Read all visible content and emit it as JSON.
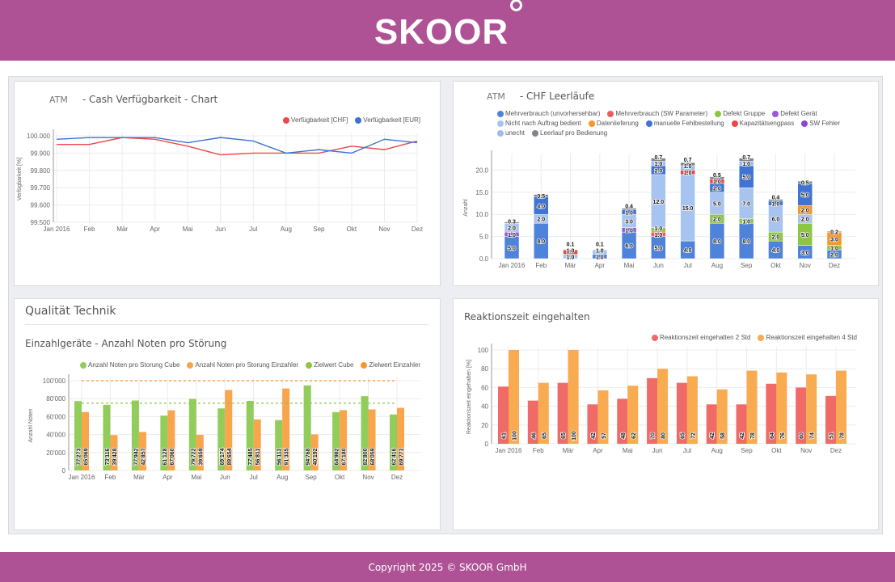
{
  "header": {
    "logo": "SKOOR"
  },
  "footer": {
    "copyright": "Copyright 2025 © SKOOR GmbH"
  },
  "colors": {
    "brand": "#ae5295"
  },
  "months": [
    "Jan 2016",
    "Feb",
    "Mär",
    "Apr",
    "Mai",
    "Jun",
    "Jul",
    "Aug",
    "Sep",
    "Okt",
    "Nov",
    "Dez"
  ],
  "panels": {
    "cash": {
      "prefix": "ATM",
      "title": "- Cash Verfügbarkeit - Chart"
    },
    "leer": {
      "prefix": "ATM",
      "title": "- CHF Leerläufe"
    },
    "qual": {
      "section": "Qualität Technik",
      "title": "Einzahlgeräte - Anzahl Noten pro Störung"
    },
    "reak": {
      "title": "Reaktionszeit eingehalten"
    }
  },
  "chart_data": [
    {
      "type": "line",
      "ylabel": "Verfügbarkeit [%]",
      "ylim": [
        99.5,
        100.0
      ],
      "yticks": [
        99.5,
        99.6,
        99.7,
        99.8,
        99.9,
        100.0
      ],
      "ytick_labels": [
        "99.500",
        "99.600",
        "99.700",
        "99.800",
        "99.900",
        "100.000"
      ],
      "legend_position": "top-right",
      "grid": true,
      "series": [
        {
          "name": "Verfügbarkeit [CHF]",
          "color": "#f0464a",
          "values": [
            99.95,
            99.95,
            99.99,
            99.98,
            99.94,
            99.89,
            99.9,
            99.9,
            99.9,
            99.94,
            99.92,
            99.97
          ]
        },
        {
          "name": "Verfügbarkeit [EUR]",
          "color": "#3a73d6",
          "values": [
            99.98,
            99.99,
            99.99,
            99.99,
            99.96,
            99.99,
            99.97,
            99.9,
            99.92,
            99.9,
            99.98,
            99.96
          ]
        }
      ]
    },
    {
      "type": "bar",
      "stacked": true,
      "ylabel": "Anzahl",
      "ylim": [
        0,
        23
      ],
      "yticks": [
        0,
        5,
        10,
        15,
        20
      ],
      "ytick_labels": [
        "0.0",
        "5.0",
        "10.0",
        "15.0",
        "20.0"
      ],
      "legend_position": "top",
      "grid": true,
      "series": [
        {
          "name": "Mehrverbrauch (unvorhersehbar)",
          "color": "#4f82d9",
          "values": [
            5,
            8,
            0,
            1,
            6,
            5,
            4,
            8,
            8,
            4,
            3,
            2
          ]
        },
        {
          "name": "Mehrverbrauch (SW Parameter)",
          "color": "#f25a5a",
          "values": [
            0,
            0,
            0,
            0,
            0,
            1,
            0,
            0,
            0,
            0,
            0,
            0
          ]
        },
        {
          "name": "Defekt Gruppe",
          "color": "#8dc641",
          "values": [
            0,
            0,
            0,
            0,
            0,
            1,
            0,
            2,
            1,
            2,
            5,
            1
          ]
        },
        {
          "name": "Defekt Gerät",
          "color": "#9a58d8",
          "values": [
            1,
            0,
            0,
            0,
            1,
            0,
            0,
            0,
            0,
            0,
            0,
            0
          ]
        },
        {
          "name": "Nicht nach Auftrag bedient",
          "color": "#a7c3ef",
          "values": [
            2,
            2,
            1,
            1,
            3,
            12,
            15,
            5,
            7,
            6,
            2,
            0
          ]
        },
        {
          "name": "Datenlieferung",
          "color": "#f7962a",
          "values": [
            0,
            0,
            0,
            0,
            0,
            0,
            0,
            0,
            0,
            0,
            2,
            3
          ]
        },
        {
          "name": "manuelle Fehlbestellung",
          "color": "#3f74d4",
          "values": [
            0,
            4,
            0,
            0,
            1,
            2,
            0,
            2,
            5,
            1,
            5,
            0
          ]
        },
        {
          "name": "Kapazitätsengpass",
          "color": "#ee4545",
          "values": [
            0,
            0,
            1,
            0,
            0,
            0,
            1,
            1,
            0,
            0,
            0,
            0
          ]
        },
        {
          "name": "SW Fehler",
          "color": "#8c45d2",
          "values": [
            0,
            0,
            0,
            0,
            0,
            0,
            0,
            0,
            0,
            0,
            0,
            0
          ]
        },
        {
          "name": "unecht",
          "color": "#9cbbee",
          "values": [
            0,
            0,
            0,
            0,
            0,
            1,
            1,
            0,
            1,
            0,
            0,
            0
          ]
        },
        {
          "name": "Leerlauf pro Bedienung",
          "color": "#7d8689",
          "values": [
            0.3,
            0.5,
            0.1,
            0.1,
            0.4,
            0.7,
            0.7,
            0.5,
            0.7,
            0.4,
            0.5,
            0.2
          ]
        }
      ]
    },
    {
      "type": "bar",
      "ylabel": "Anzahl Noten",
      "ylim": [
        0,
        100000
      ],
      "yticks": [
        0,
        20000,
        40000,
        60000,
        80000,
        100000
      ],
      "ytick_labels": [
        "0",
        "20'000",
        "40'000",
        "60'000",
        "80'000",
        "100'000"
      ],
      "legend_position": "top",
      "grid": true,
      "series": [
        {
          "name": "Anzahl Noten pro Storung Cube",
          "color": "#92cd5b",
          "values": [
            77273,
            73116,
            77942,
            61128,
            79722,
            69174,
            77485,
            56111,
            94768,
            64982,
            82800,
            62416
          ],
          "labels": [
            "77'273",
            "73'116",
            "77'942",
            "61'128",
            "79'722",
            "69'174",
            "77'485",
            "56'111",
            "94'768",
            "64'982",
            "82'800",
            "62'416"
          ]
        },
        {
          "name": "Anzahl Noten pro Storung Einzahler",
          "color": "#f9a54c",
          "values": [
            65069,
            39428,
            42857,
            67060,
            39659,
            89654,
            56811,
            91335,
            40192,
            67180,
            68059,
            69771
          ],
          "labels": [
            "65'069",
            "39'428",
            "42'857",
            "67'060",
            "39'659",
            "89'654",
            "56'811",
            "91'335",
            "40'192",
            "67'180",
            "68'059",
            "69'771"
          ]
        }
      ],
      "targets": [
        {
          "name": "Zielwert Cube",
          "color": "#8dc641",
          "value": 75000
        },
        {
          "name": "Zielwert Einzahler",
          "color": "#f7962a",
          "value": 100000
        }
      ]
    },
    {
      "type": "bar",
      "ylabel": "Reaktionszeit eingehalten [%]",
      "ylim": [
        0,
        100
      ],
      "yticks": [
        0,
        20,
        40,
        60,
        80,
        100
      ],
      "ytick_labels": [
        "0",
        "20",
        "40",
        "60",
        "80",
        "100"
      ],
      "legend_position": "top-right",
      "grid": true,
      "series": [
        {
          "name": "Reaktionszeit eingehalten 2 Std",
          "color": "#f06a68",
          "values": [
            61,
            46,
            65,
            42,
            48,
            70,
            65,
            42,
            42,
            64,
            60,
            51
          ]
        },
        {
          "name": "Reaktionszeit eingehalten 4 Std",
          "color": "#f9ab52",
          "values": [
            100,
            65,
            100,
            57,
            62,
            80,
            72,
            58,
            78,
            76,
            74,
            78
          ]
        }
      ]
    }
  ]
}
